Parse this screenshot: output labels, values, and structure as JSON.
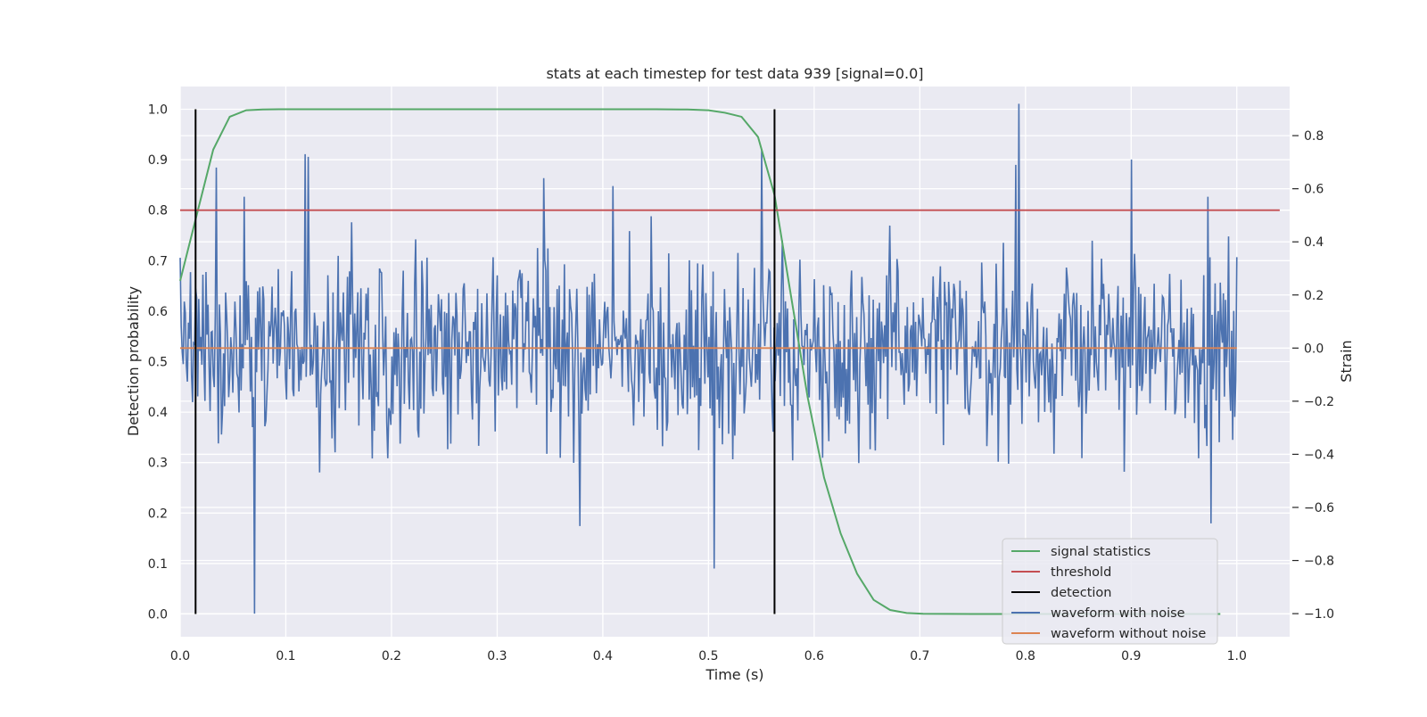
{
  "chart_data": {
    "type": "line",
    "title": "stats at each timestep for test data 939 [signal=0.0]",
    "xlabel": "Time (s)",
    "ylabel_left": "Detection probability",
    "ylabel_right": "Strain",
    "xlim": [
      0.0,
      1.05
    ],
    "ylim_left": [
      -0.045,
      1.045
    ],
    "ylim_right": [
      -1.087,
      0.985
    ],
    "x_ticks": [
      0.0,
      0.1,
      0.2,
      0.3,
      0.4,
      0.5,
      0.6,
      0.7,
      0.8,
      0.9,
      1.0
    ],
    "x_tick_labels": [
      "0.0",
      "0.1",
      "0.2",
      "0.3",
      "0.4",
      "0.5",
      "0.6",
      "0.7",
      "0.8",
      "0.9",
      "1.0"
    ],
    "y_left_ticks": [
      0.0,
      0.1,
      0.2,
      0.3,
      0.4,
      0.5,
      0.6,
      0.7,
      0.8,
      0.9,
      1.0
    ],
    "y_left_tick_labels": [
      "0.0",
      "0.1",
      "0.2",
      "0.3",
      "0.4",
      "0.5",
      "0.6",
      "0.7",
      "0.8",
      "0.9",
      "1.0"
    ],
    "y_right_ticks": [
      -1.0,
      -0.8,
      -0.6,
      -0.4,
      -0.2,
      0.0,
      0.2,
      0.4,
      0.6,
      0.8
    ],
    "y_right_tick_labels": [
      "−1.0",
      "−0.8",
      "−0.6",
      "−0.4",
      "−0.2",
      "0.0",
      "0.2",
      "0.4",
      "0.6",
      "0.8"
    ],
    "grid": true,
    "legend_position": "lower-right",
    "series": [
      {
        "name": "signal statistics",
        "axis": "left",
        "color": "#55a868",
        "x": [
          0.0,
          0.0156,
          0.0313,
          0.0469,
          0.0625,
          0.0781,
          0.0938,
          0.1094,
          0.125,
          0.2,
          0.3,
          0.4,
          0.45,
          0.48,
          0.5,
          0.5156,
          0.5313,
          0.5469,
          0.5625,
          0.5781,
          0.5938,
          0.6094,
          0.625,
          0.6406,
          0.6563,
          0.6719,
          0.6875,
          0.7031,
          0.75,
          0.8,
          0.9,
          0.9844
        ],
        "y": [
          0.66,
          0.79,
          0.92,
          0.985,
          0.998,
          0.9995,
          1.0,
          1.0,
          1.0,
          1.0,
          1.0,
          1.0,
          1.0,
          0.9995,
          0.998,
          0.993,
          0.985,
          0.945,
          0.83,
          0.63,
          0.43,
          0.27,
          0.16,
          0.08,
          0.028,
          0.008,
          0.002,
          0.0005,
          0.0,
          0.0,
          0.0,
          0.0
        ]
      },
      {
        "name": "threshold",
        "axis": "left",
        "color": "#c44e52",
        "x": [
          0.0,
          1.0406
        ],
        "y": [
          0.8,
          0.8
        ]
      },
      {
        "name": "detection",
        "axis": "left",
        "color": "#000000",
        "segments": [
          {
            "x": 0.0146,
            "y0": 0.0,
            "y1": 1.0
          },
          {
            "x": 0.5625,
            "y0": 0.0,
            "y1": 1.0
          }
        ]
      },
      {
        "name": "waveform with noise",
        "axis": "right",
        "color": "#4c72b0",
        "x_start": 0.0,
        "x_end": 1.0,
        "n_points": 1024,
        "peaks": [
          {
            "x": 0.0,
            "y": 0.34
          },
          {
            "x": 0.0345,
            "y": 0.68
          },
          {
            "x": 0.0602,
            "y": 0.57
          },
          {
            "x": 0.0703,
            "y": -1.0
          },
          {
            "x": 0.1182,
            "y": 0.73
          },
          {
            "x": 0.1208,
            "y": 0.72
          },
          {
            "x": 0.3445,
            "y": 0.64
          },
          {
            "x": 0.3781,
            "y": -0.67
          },
          {
            "x": 0.4096,
            "y": 0.61
          },
          {
            "x": 0.5053,
            "y": -0.83
          },
          {
            "x": 0.5507,
            "y": 0.75
          },
          {
            "x": 0.7934,
            "y": 0.92
          },
          {
            "x": 0.7908,
            "y": 0.69
          },
          {
            "x": 0.9001,
            "y": 0.71
          },
          {
            "x": 0.9729,
            "y": 0.57
          },
          {
            "x": 0.9756,
            "y": -0.66
          },
          {
            "x": 0.9994,
            "y": -0.12
          }
        ],
        "y_range": [
          -1.0,
          0.92
        ]
      },
      {
        "name": "waveform without noise",
        "axis": "right",
        "color": "#dd8452",
        "x": [
          0.0,
          1.0
        ],
        "y": [
          0.0,
          0.0
        ]
      }
    ]
  }
}
